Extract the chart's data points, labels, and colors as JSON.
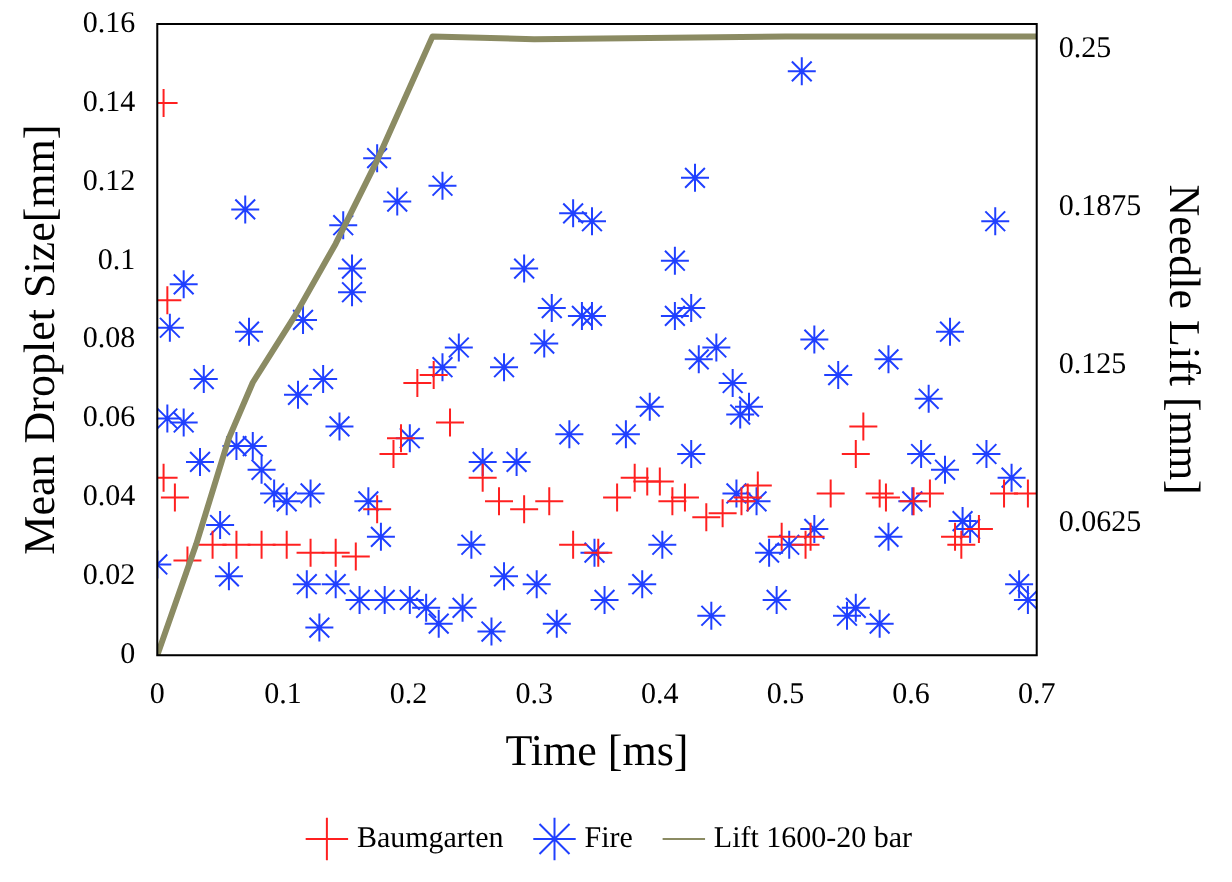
{
  "chart_data": {
    "type": "scatter",
    "xlabel": "Time [ms]",
    "ylabel": "Mean Droplet Size[mm]",
    "y2label": "Needle Lift [mm]",
    "xlim": [
      0,
      0.7
    ],
    "xticks": [
      0,
      0.1,
      0.2,
      0.3,
      0.4,
      0.5,
      0.6,
      0.7
    ],
    "ylim": [
      0,
      0.16
    ],
    "yticks": [
      0,
      0.02,
      0.04,
      0.06,
      0.08,
      0.1,
      0.12,
      0.14,
      0.16
    ],
    "y2lim": [
      0.01,
      0.26
    ],
    "y2ticks": [
      0.0625,
      0.125,
      0.1875,
      0.25
    ],
    "grid": false,
    "legend": "bottom",
    "series": [
      {
        "name": "Baumgarten",
        "type": "scatter",
        "marker": "cross",
        "color": "#ff2020",
        "x": [
          0.005,
          0.008,
          0.005,
          0.014,
          0.024,
          0.044,
          0.063,
          0.083,
          0.103,
          0.122,
          0.142,
          0.158,
          0.175,
          0.188,
          0.194,
          0.207,
          0.22,
          0.233,
          0.259,
          0.272,
          0.292,
          0.312,
          0.331,
          0.351,
          0.366,
          0.4,
          0.41,
          0.437,
          0.465,
          0.478,
          0.497,
          0.516,
          0.536,
          0.556,
          0.562,
          0.575,
          0.602,
          0.615,
          0.635,
          0.654,
          0.674,
          0.693,
          0.38,
          0.39,
          0.42,
          0.45,
          0.47,
          0.52,
          0.58,
          0.64
        ],
        "values": [
          0.14,
          0.09,
          0.045,
          0.04,
          0.024,
          0.028,
          0.028,
          0.028,
          0.028,
          0.026,
          0.026,
          0.025,
          0.037,
          0.051,
          0.055,
          0.069,
          0.071,
          0.059,
          0.045,
          0.039,
          0.037,
          0.039,
          0.028,
          0.026,
          0.04,
          0.044,
          0.039,
          0.035,
          0.039,
          0.043,
          0.03,
          0.028,
          0.041,
          0.051,
          0.058,
          0.041,
          0.039,
          0.041,
          0.03,
          0.032,
          0.041,
          0.041,
          0.045,
          0.044,
          0.04,
          0.036,
          0.04,
          0.03,
          0.04,
          0.028
        ]
      },
      {
        "name": "Fire",
        "type": "scatter",
        "color": "#2040ff",
        "x": [
          0,
          0.01,
          0.021,
          0.008,
          0.021,
          0.034,
          0.037,
          0.05,
          0.057,
          0.07,
          0.063,
          0.076,
          0.083,
          0.073,
          0.093,
          0.103,
          0.112,
          0.116,
          0.122,
          0.132,
          0.119,
          0.129,
          0.142,
          0.145,
          0.148,
          0.155,
          0.155,
          0.168,
          0.161,
          0.178,
          0.181,
          0.175,
          0.191,
          0.201,
          0.201,
          0.214,
          0.224,
          0.227,
          0.227,
          0.24,
          0.243,
          0.25,
          0.259,
          0.266,
          0.276,
          0.276,
          0.286,
          0.292,
          0.302,
          0.308,
          0.314,
          0.318,
          0.328,
          0.331,
          0.338,
          0.348,
          0.346,
          0.346,
          0.373,
          0.356,
          0.386,
          0.392,
          0.402,
          0.412,
          0.425,
          0.412,
          0.425,
          0.428,
          0.441,
          0.431,
          0.445,
          0.458,
          0.464,
          0.471,
          0.461,
          0.477,
          0.493,
          0.487,
          0.503,
          0.513,
          0.523,
          0.523,
          0.542,
          0.549,
          0.556,
          0.575,
          0.582,
          0.582,
          0.608,
          0.614,
          0.601,
          0.627,
          0.631,
          0.641,
          0.647,
          0.66,
          0.667,
          0.68,
          0.686,
          0.693
        ],
        "values": [
          0.023,
          0.083,
          0.094,
          0.06,
          0.059,
          0.049,
          0.07,
          0.033,
          0.02,
          0.113,
          0.053,
          0.053,
          0.047,
          0.082,
          0.041,
          0.039,
          0.066,
          0.085,
          0.041,
          0.07,
          0.018,
          0.007,
          0.018,
          0.058,
          0.109,
          0.092,
          0.098,
          0.039,
          0.014,
          0.03,
          0.014,
          0.126,
          0.115,
          0.014,
          0.055,
          0.012,
          0.008,
          0.119,
          0.073,
          0.078,
          0.012,
          0.028,
          0.049,
          0.006,
          0.02,
          0.073,
          0.049,
          0.098,
          0.018,
          0.079,
          0.088,
          0.008,
          0.056,
          0.112,
          0.086,
          0.026,
          0.11,
          0.086,
          0.056,
          0.014,
          0.018,
          0.063,
          0.028,
          0.1,
          0.088,
          0.086,
          0.051,
          0.121,
          0.01,
          0.075,
          0.078,
          0.069,
          0.061,
          0.063,
          0.041,
          0.039,
          0.014,
          0.026,
          0.028,
          0.148,
          0.08,
          0.032,
          0.071,
          0.01,
          0.012,
          0.008,
          0.075,
          0.03,
          0.051,
          0.065,
          0.039,
          0.047,
          0.082,
          0.034,
          0.032,
          0.051,
          0.11,
          0.045,
          0.018,
          0.014
        ]
      },
      {
        "name": "Lift 1600-20 bar",
        "type": "line",
        "axis": "y2",
        "marker": "none",
        "line_style": "solid",
        "color": "#8b8b63",
        "x": [
          0,
          0.031,
          0.057,
          0.076,
          0.109,
          0.142,
          0.175,
          0.219,
          0.3,
          0.5,
          0.7
        ],
        "values": [
          0.01,
          0.054,
          0.096,
          0.118,
          0.144,
          0.173,
          0.206,
          0.255,
          0.254,
          0.255,
          0.255
        ]
      }
    ]
  }
}
